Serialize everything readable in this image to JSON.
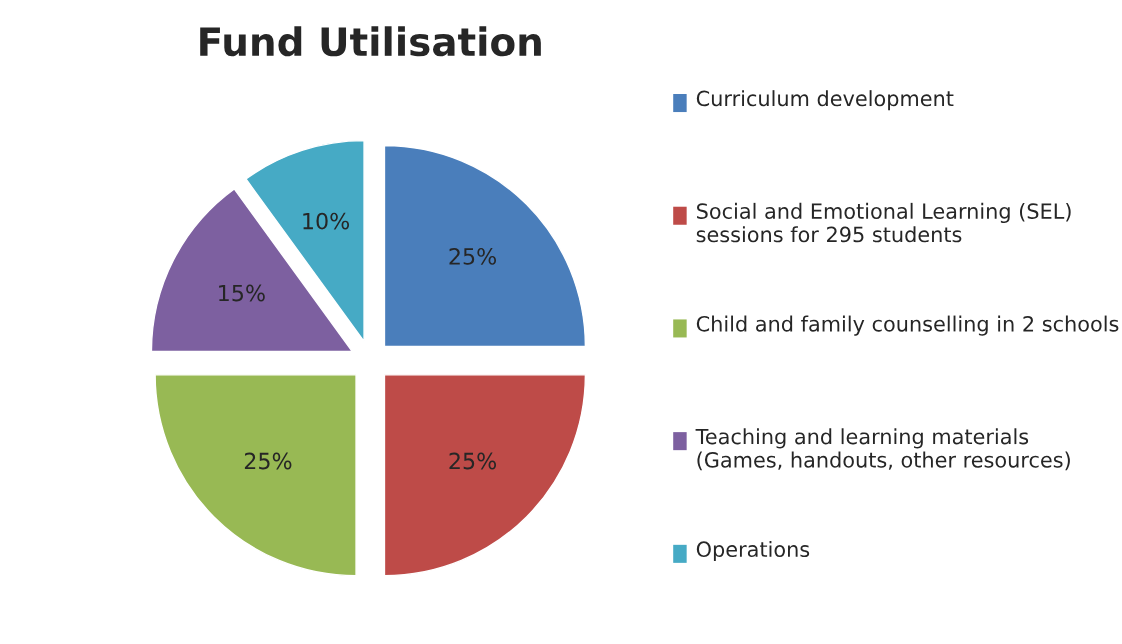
{
  "chart_data": {
    "type": "pie",
    "title": "Fund Utilisation",
    "categories": [
      "Curriculum development",
      "Social and Emotional Learning (SEL) sessions for 295 students",
      "Child and family counselling in 2 schools",
      "Teaching and learning materials (Games, handouts, other resources)",
      "Operations"
    ],
    "values": [
      25,
      25,
      25,
      15,
      10
    ],
    "colors": [
      "#4a7ebb",
      "#be4b48",
      "#98b954",
      "#7d60a0",
      "#46aac5"
    ],
    "value_labels": [
      "25%",
      "25%",
      "25%",
      "15%",
      "10%"
    ],
    "legend": "right"
  }
}
